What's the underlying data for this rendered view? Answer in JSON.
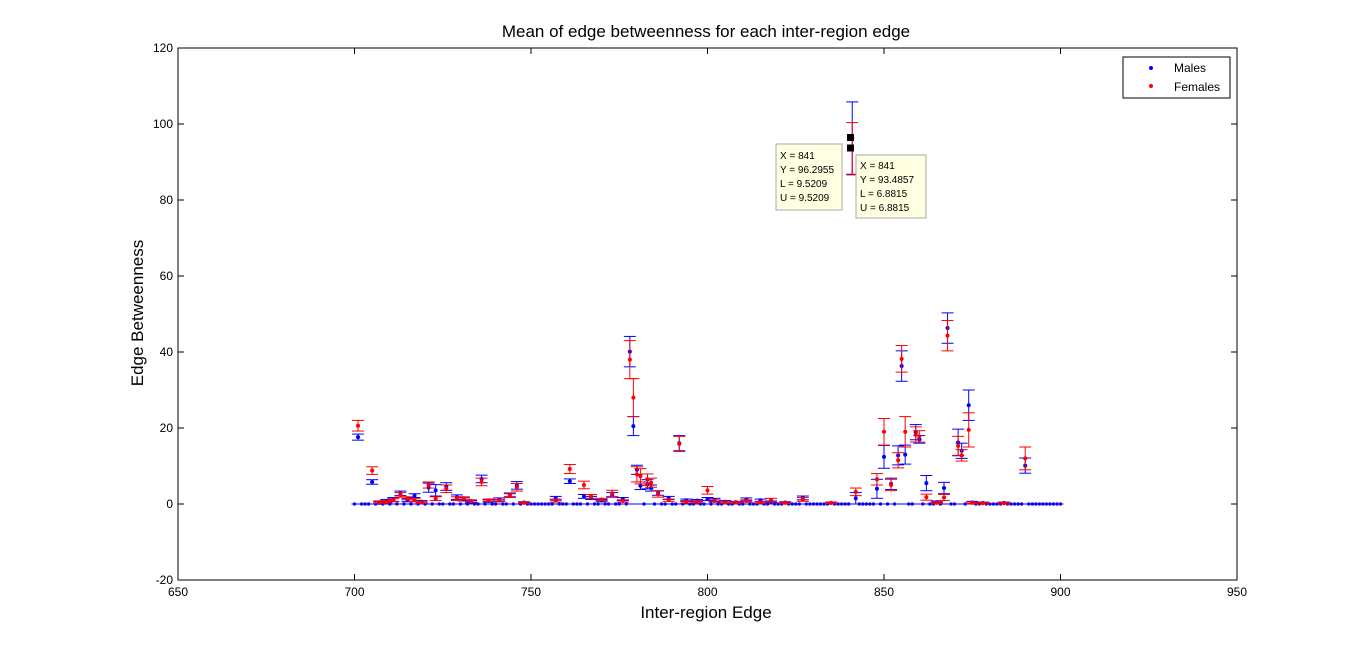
{
  "chart_data": {
    "type": "scatter",
    "title": "Mean of edge betweenness for each inter-region edge",
    "xlabel": "Inter-region Edge",
    "ylabel": "Edge Betweenness",
    "xlim": [
      650,
      950
    ],
    "ylim": [
      -20,
      120
    ],
    "xticks": [
      "650",
      "700",
      "750",
      "800",
      "850",
      "900",
      "950"
    ],
    "yticks": [
      "-20",
      "0",
      "20",
      "40",
      "60",
      "80",
      "100",
      "120"
    ],
    "grid": false,
    "legend_placement": "top-right",
    "legend": [
      "Males",
      "Females"
    ],
    "colors": {
      "males": "#0000ff",
      "females": "#ff0000",
      "tooltip_bg": "#ffffe1",
      "marker": "#000000"
    },
    "series": [
      {
        "name": "Males",
        "x": [
          701,
          705,
          707,
          709,
          711,
          713,
          715,
          717,
          719,
          721,
          723,
          726,
          729,
          731,
          733,
          736,
          738,
          741,
          744,
          746,
          748,
          757,
          761,
          765,
          767,
          770,
          773,
          776,
          778,
          779,
          780,
          781,
          783,
          784,
          786,
          789,
          792,
          794,
          797,
          800,
          802,
          805,
          808,
          811,
          815,
          818,
          822,
          827,
          835,
          841,
          842,
          848,
          850,
          852,
          854,
          855,
          856,
          859,
          860,
          862,
          865,
          867,
          868,
          871,
          872,
          874,
          875,
          878,
          884,
          890
        ],
        "y": [
          17.6,
          5.8,
          0.3,
          0.8,
          1.2,
          2.8,
          1.0,
          2.2,
          0.6,
          4.3,
          3.6,
          4.6,
          1.8,
          1.2,
          0.6,
          6.6,
          0.8,
          1.2,
          2.4,
          4.9,
          0.4,
          1.5,
          6.0,
          2.0,
          1.6,
          0.9,
          2.4,
          1.3,
          40.1,
          20.5,
          9.0,
          4.8,
          5.2,
          4.2,
          2.9,
          1.6,
          16.0,
          1.0,
          0.9,
          1.3,
          1.1,
          0.6,
          0.5,
          1.2,
          1.0,
          0.6,
          0.4,
          1.6,
          0.3,
          96.2955,
          1.5,
          4.0,
          12.4,
          5.3,
          12.8,
          36.3,
          13.0,
          18.9,
          17.0,
          5.5,
          0.5,
          4.2,
          46.3,
          16.2,
          14.0,
          26.0,
          0.4,
          0.3,
          0.3,
          10.1
        ],
        "err": [
          0.8,
          0.6,
          0.3,
          0.4,
          0.5,
          0.6,
          0.4,
          0.5,
          0.3,
          1.2,
          1.5,
          1.0,
          0.6,
          0.4,
          0.3,
          1.0,
          0.3,
          0.4,
          0.5,
          1.0,
          0.2,
          0.5,
          0.6,
          0.5,
          0.4,
          0.3,
          0.6,
          0.4,
          4.0,
          2.5,
          1.2,
          1.0,
          1.2,
          0.8,
          0.6,
          0.4,
          2.0,
          0.3,
          0.3,
          0.4,
          0.4,
          0.3,
          0.2,
          0.4,
          0.3,
          0.2,
          0.2,
          0.5,
          0.2,
          9.5209,
          1.5,
          2.5,
          3.0,
          1.5,
          2.5,
          4.0,
          2.5,
          2.0,
          1.0,
          2.0,
          0.3,
          1.5,
          4.0,
          3.5,
          2.0,
          4.0,
          0.3,
          0.2,
          0.2,
          2.0
        ]
      },
      {
        "name": "Females",
        "x": [
          701,
          705,
          707,
          709,
          711,
          713,
          715,
          717,
          719,
          721,
          723,
          726,
          729,
          731,
          733,
          736,
          738,
          741,
          744,
          746,
          748,
          757,
          761,
          765,
          767,
          770,
          773,
          776,
          778,
          779,
          780,
          781,
          783,
          784,
          786,
          789,
          792,
          794,
          797,
          800,
          802,
          805,
          808,
          811,
          815,
          818,
          822,
          827,
          835,
          841,
          842,
          848,
          850,
          852,
          854,
          855,
          856,
          859,
          860,
          862,
          865,
          867,
          868,
          871,
          872,
          874,
          875,
          878,
          884,
          890
        ],
        "y": [
          20.6,
          8.8,
          0.5,
          0.6,
          1.0,
          2.4,
          1.5,
          1.0,
          0.4,
          5.0,
          1.4,
          4.0,
          1.4,
          1.5,
          0.8,
          5.8,
          1.0,
          0.9,
          2.2,
          4.4,
          0.3,
          0.9,
          9.2,
          5.0,
          2.0,
          1.2,
          2.8,
          0.8,
          38.0,
          28.0,
          7.8,
          7.3,
          6.4,
          5.6,
          2.6,
          1.0,
          15.8,
          0.6,
          0.6,
          3.6,
          0.8,
          0.4,
          0.4,
          0.8,
          0.4,
          1.0,
          0.3,
          1.2,
          0.3,
          93.4857,
          3.2,
          6.5,
          19.0,
          5.0,
          11.5,
          38.2,
          19.0,
          18.3,
          17.8,
          1.8,
          0.3,
          1.7,
          44.3,
          15.3,
          12.8,
          19.5,
          0.3,
          0.2,
          0.2,
          12.0
        ],
        "err": [
          1.4,
          1.0,
          0.3,
          0.3,
          0.4,
          0.6,
          0.4,
          0.4,
          0.2,
          0.8,
          0.5,
          1.0,
          0.5,
          0.4,
          0.3,
          1.0,
          0.3,
          0.3,
          0.5,
          1.0,
          0.2,
          0.4,
          1.2,
          1.0,
          0.5,
          0.3,
          0.8,
          0.3,
          5.0,
          5.0,
          2.0,
          2.0,
          1.5,
          1.2,
          0.8,
          0.3,
          2.0,
          0.3,
          0.3,
          1.0,
          0.3,
          0.2,
          0.2,
          0.3,
          0.2,
          0.5,
          0.2,
          0.5,
          0.2,
          6.8815,
          1.0,
          1.5,
          3.5,
          1.5,
          2.0,
          3.5,
          4.0,
          2.0,
          1.5,
          0.8,
          0.2,
          0.8,
          4.0,
          2.5,
          1.5,
          4.5,
          0.2,
          0.2,
          0.2,
          3.0
        ]
      }
    ],
    "zero_points_x_start": 700,
    "zero_points_x_end": 900,
    "annotations": [
      {
        "lines": [
          "X = 841",
          "Y = 96.2955",
          "L = 9.5209",
          "U = 9.5209"
        ]
      },
      {
        "lines": [
          "X = 841",
          "Y = 93.4857",
          "L = 6.8815",
          "U = 6.8815"
        ]
      }
    ]
  }
}
